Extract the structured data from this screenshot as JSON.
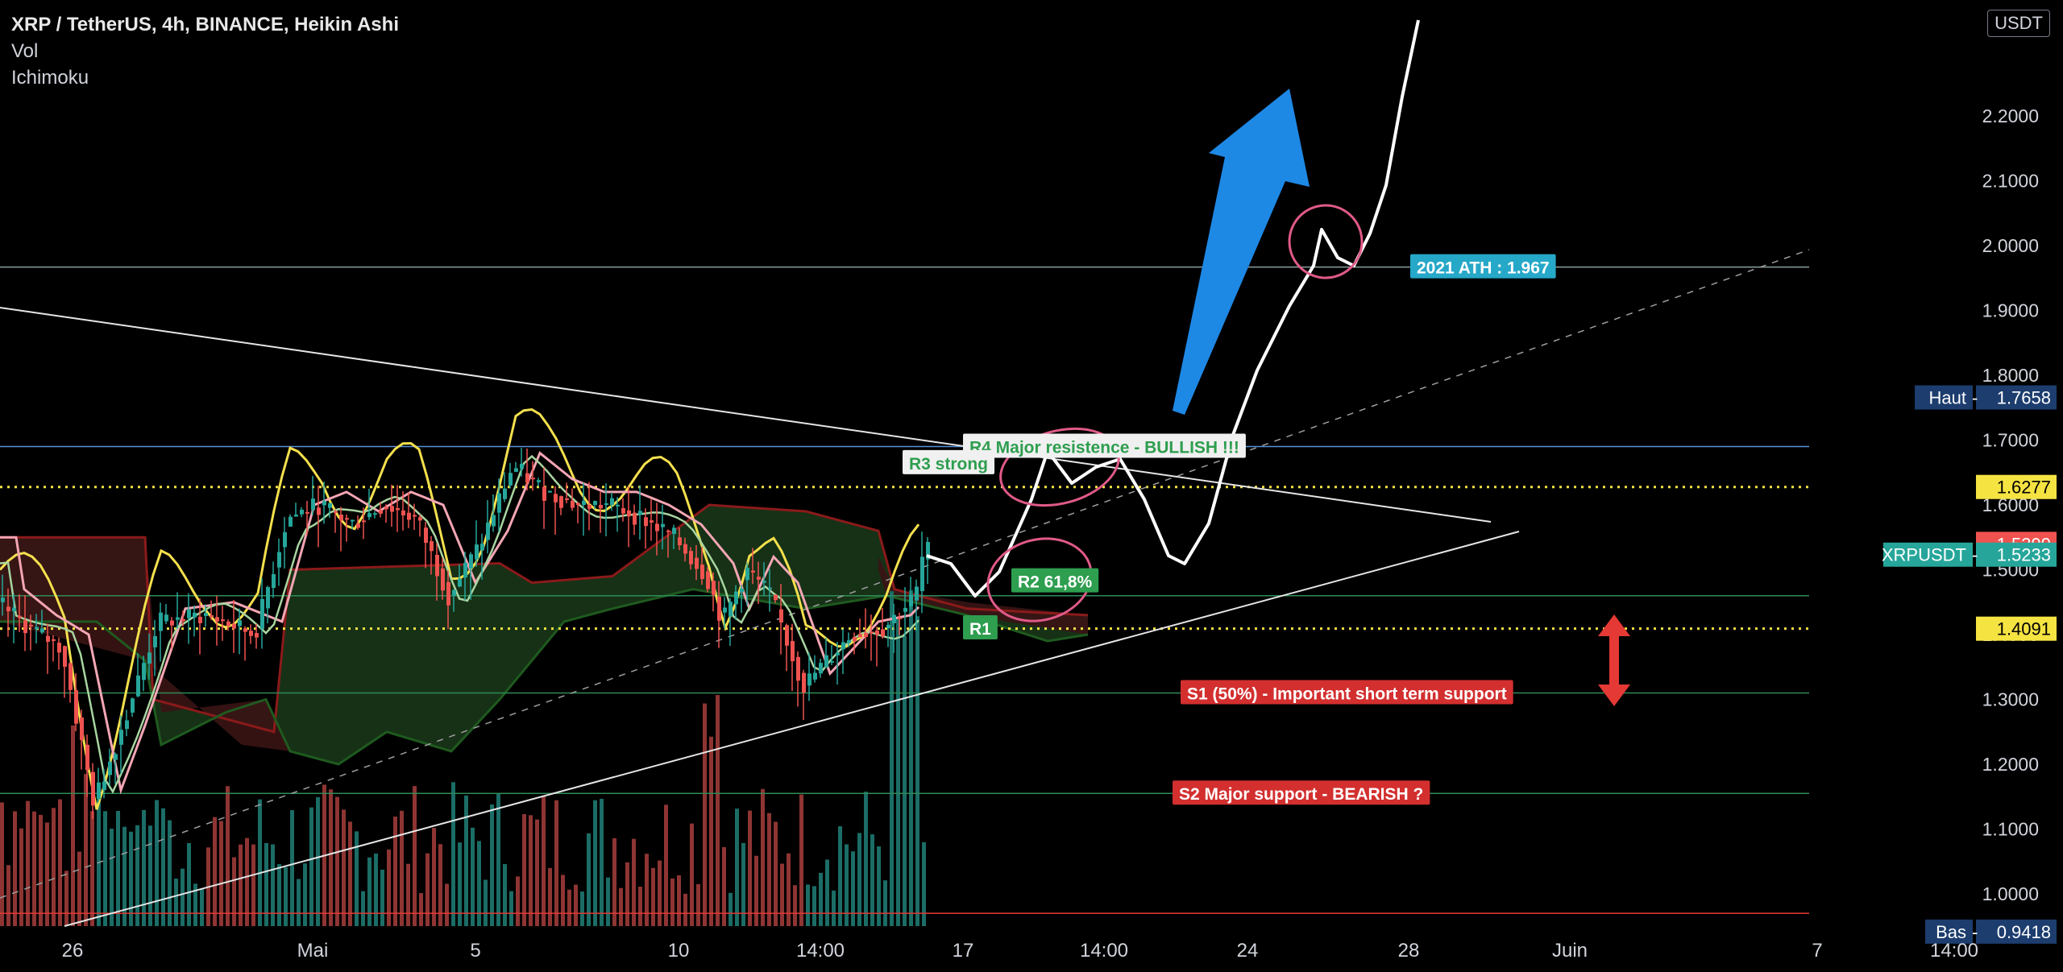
{
  "header": {
    "symbol": "XRP / TetherUS, 4h, BINANCE, Heikin Ashi",
    "indicator_1": "Vol",
    "indicator_2": "Ichimoku",
    "currency": "USDT"
  },
  "colors": {
    "background": "#000000",
    "candle_up": "#26a69a",
    "candle_down": "#ef5350",
    "blue_arrow": "#1e88e5",
    "dotted_level": "#f5e342",
    "pink_marker": "#e05a88"
  },
  "chart_data": {
    "type": "candlestick",
    "title": "XRP / TetherUS, 4h, BINANCE, Heikin Ashi",
    "y_range": [
      0.9,
      2.35
    ],
    "y_ticks": [
      "1.0000",
      "1.1000",
      "1.2000",
      "1.3000",
      "1.4000",
      "1.5000",
      "1.6000",
      "1.7000",
      "1.8000",
      "1.9000",
      "2.0000",
      "2.1000",
      "2.2000"
    ],
    "x_ticks": [
      "26",
      "Mai",
      "5",
      "10",
      "14:00",
      "17",
      "14:00",
      "24",
      "28",
      "Juin",
      "7",
      "14:00"
    ],
    "grid": false,
    "price_tags": [
      {
        "label": "Haut",
        "value": "1.7658",
        "price": 1.7658,
        "color": "#1c3d6e"
      },
      {
        "label": "",
        "value": "1.6277",
        "price": 1.6277,
        "color": "#f5e342"
      },
      {
        "label": "",
        "value": "1.5399",
        "price": 1.5399,
        "color": "#ef5350"
      },
      {
        "label": "XRPUSDT",
        "value": "1.5233",
        "price": 1.5233,
        "color": "#26a69a"
      },
      {
        "label": "",
        "value": "1.4091",
        "price": 1.4091,
        "color": "#f5e342"
      },
      {
        "label": "Bas",
        "value": "0.9418",
        "price": 0.9418,
        "color": "#1c3d6e"
      }
    ],
    "horizontal_levels": [
      {
        "price": 1.967,
        "style": "solid",
        "color": "#8aa0a0"
      },
      {
        "price": 1.69,
        "style": "solid",
        "color": "#5b8fd9"
      },
      {
        "price": 1.6277,
        "style": "dotted",
        "color": "#f5e342"
      },
      {
        "price": 1.46,
        "style": "solid",
        "color": "#2e8b57"
      },
      {
        "price": 1.4091,
        "style": "dotted",
        "color": "#f5e342"
      },
      {
        "price": 1.31,
        "style": "solid",
        "color": "#2e8b57"
      },
      {
        "price": 1.155,
        "style": "solid",
        "color": "#2e8b57"
      },
      {
        "price": 0.97,
        "style": "solid",
        "color": "#e53935"
      }
    ],
    "annotations": [
      {
        "text": "2021 ATH : 1.967",
        "price": 1.967,
        "bg": "#26a8c8",
        "fg": "#ffffff"
      },
      {
        "text": "R4 Major resistence - BULLISH !!!",
        "price": 1.69,
        "bg": "#f0f0f0",
        "fg": "#2e9e4f"
      },
      {
        "text": "R3 strong",
        "price": 1.625,
        "bg": "#f0f0f0",
        "fg": "#2e9e4f"
      },
      {
        "text": "R2 61,8%",
        "price": 1.475,
        "bg": "#2e9e4f",
        "fg": "#ffffff"
      },
      {
        "text": "R1",
        "price": 1.405,
        "bg": "#2e9e4f",
        "fg": "#ffffff"
      },
      {
        "text": "S1 (50%) - Important short term support",
        "price": 1.31,
        "bg": "#d32f2f",
        "fg": "#ffffff"
      },
      {
        "text": "S2 Major support - BEARISH ?",
        "price": 1.155,
        "bg": "#d32f2f",
        "fg": "#ffffff"
      }
    ],
    "projection_path": [
      [
        0,
        1.51
      ],
      [
        1,
        1.45
      ],
      [
        2,
        1.59
      ],
      [
        3,
        1.56
      ],
      [
        4,
        1.6
      ],
      [
        5,
        1.48
      ],
      [
        6,
        1.56
      ],
      [
        7,
        1.72
      ],
      [
        8,
        1.88
      ],
      [
        9,
        1.96
      ],
      [
        10,
        2.01
      ],
      [
        11,
        1.96
      ],
      [
        12,
        2.05
      ],
      [
        13,
        2.33
      ]
    ]
  }
}
